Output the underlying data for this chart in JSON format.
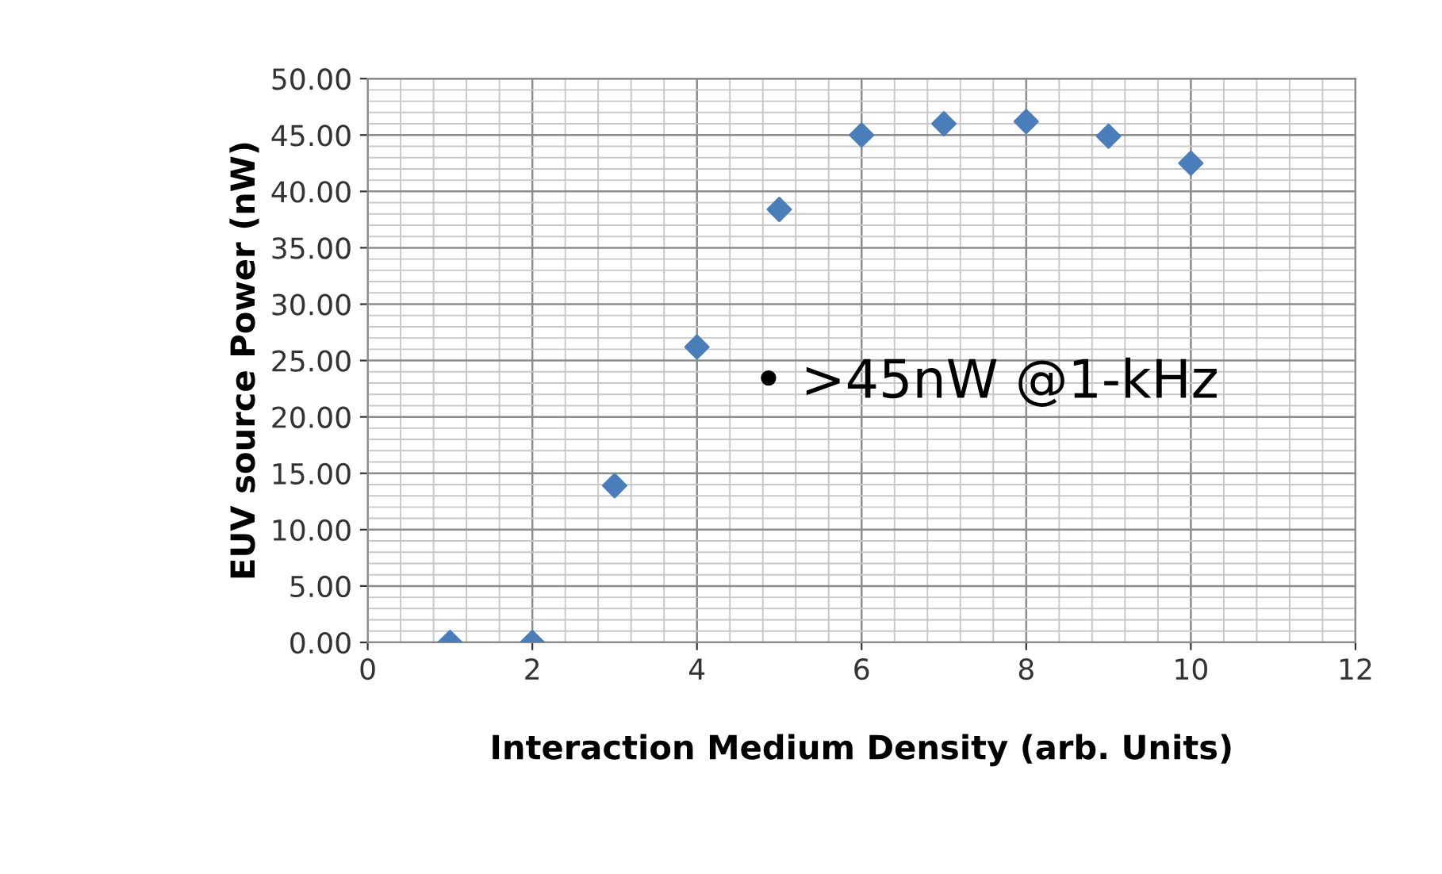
{
  "chart_data": {
    "type": "scatter",
    "xlabel": "Interaction Medium Density (arb. Units)",
    "ylabel": "EUV source Power (nW)",
    "x": [
      1,
      2,
      3,
      4,
      5,
      6,
      7,
      8,
      9,
      10
    ],
    "series": [
      {
        "color": "#4a7ebb",
        "values": [
          0,
          0,
          13.9,
          26.2,
          38.4,
          45.0,
          46.0,
          46.2,
          44.9,
          42.5
        ]
      }
    ],
    "xlim": [
      0,
      12
    ],
    "xticks": [
      0,
      2,
      4,
      6,
      8,
      10,
      12
    ],
    "ylim": [
      0,
      50
    ],
    "yticks": [
      {
        "value": 0,
        "label": "0.00"
      },
      {
        "value": 5,
        "label": "5.00"
      },
      {
        "value": 10,
        "label": "10.00"
      },
      {
        "value": 15,
        "label": "15.00"
      },
      {
        "value": 20,
        "label": "20.00"
      },
      {
        "value": 25,
        "label": "25.00"
      },
      {
        "value": 30,
        "label": "30.00"
      },
      {
        "value": 35,
        "label": "35.00"
      },
      {
        "value": 40,
        "label": "40.00"
      },
      {
        "value": 45,
        "label": "45.00"
      },
      {
        "value": 50,
        "label": "50.00"
      }
    ],
    "grid": true,
    "marker": "diamond",
    "annotations": [
      "• >45nW @1-kHz"
    ]
  }
}
